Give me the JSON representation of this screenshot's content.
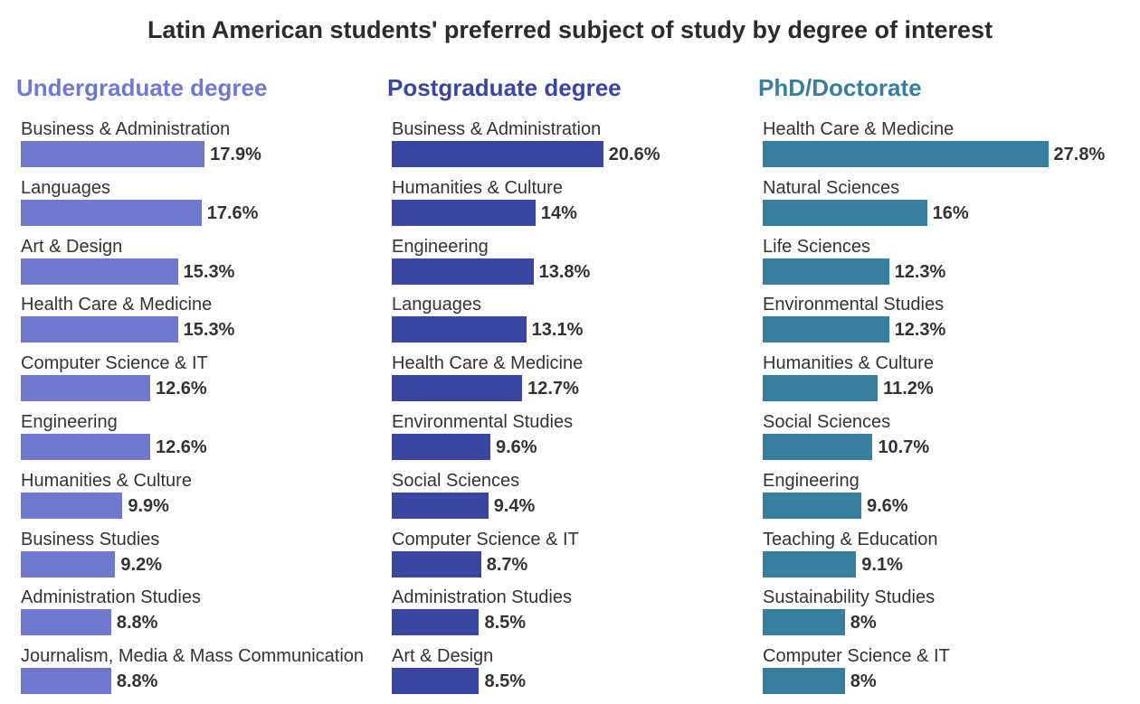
{
  "chart_data": [
    {
      "type": "bar",
      "title": "Latin American students' preferred subject of study by degree of interest",
      "subtitle": "Undergraduate degree",
      "color": "#7179cf",
      "categories": [
        "Business & Administration",
        "Languages",
        "Art & Design",
        "Health Care & Medicine",
        "Computer Science & IT",
        "Engineering",
        "Humanities & Culture",
        "Business Studies",
        "Administration Studies",
        "Journalism, Media & Mass Communication"
      ],
      "values": [
        17.9,
        17.6,
        15.3,
        15.3,
        12.6,
        12.6,
        9.9,
        9.2,
        8.8,
        8.8
      ],
      "value_labels": [
        "17.9%",
        "17.6%",
        "15.3%",
        "15.3%",
        "12.6%",
        "12.6%",
        "9.9%",
        "9.2%",
        "8.8%",
        "8.8%"
      ]
    },
    {
      "type": "bar",
      "subtitle": "Postgraduate degree",
      "color": "#3b45a2",
      "categories": [
        "Business & Administration",
        "Humanities & Culture",
        "Engineering",
        "Languages",
        "Health Care & Medicine",
        "Environmental Studies",
        "Social Sciences",
        "Computer Science & IT",
        "Administration Studies",
        "Art & Design"
      ],
      "values": [
        20.6,
        14,
        13.8,
        13.1,
        12.7,
        9.6,
        9.4,
        8.7,
        8.5,
        8.5
      ],
      "value_labels": [
        "20.6%",
        "14%",
        "13.8%",
        "13.1%",
        "12.7%",
        "9.6%",
        "9.4%",
        "8.7%",
        "8.5%",
        "8.5%"
      ]
    },
    {
      "type": "bar",
      "subtitle": "PhD/Doctorate",
      "color": "#377f9d",
      "categories": [
        "Health Care & Medicine",
        "Natural Sciences",
        "Life Sciences",
        "Environmental Studies",
        "Humanities & Culture",
        "Social Sciences",
        "Engineering",
        "Teaching & Education",
        "Sustainability Studies",
        "Computer Science & IT"
      ],
      "values": [
        27.8,
        16,
        12.3,
        12.3,
        11.2,
        10.7,
        9.6,
        9.1,
        8,
        8
      ],
      "value_labels": [
        "27.8%",
        "16%",
        "12.3%",
        "12.3%",
        "11.2%",
        "10.7%",
        "9.6%",
        "9.1%",
        "8%",
        "8%"
      ]
    }
  ]
}
